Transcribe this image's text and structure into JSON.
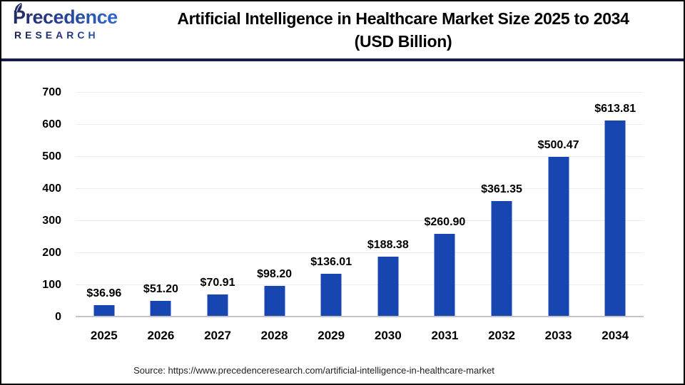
{
  "header": {
    "logo": {
      "line1": "Precedence",
      "line2": "RESEARCH"
    },
    "title_line1": "Artificial Intelligence in Healthcare Market Size 2025 to 2034",
    "title_line2": "(USD Billion)"
  },
  "chart_data": {
    "type": "bar",
    "title": "Artificial Intelligence in Healthcare Market Size 2025 to 2034 (USD Billion)",
    "categories": [
      "2025",
      "2026",
      "2027",
      "2028",
      "2029",
      "2030",
      "2031",
      "2032",
      "2033",
      "2034"
    ],
    "values": [
      36.96,
      51.2,
      70.91,
      98.2,
      136.01,
      188.38,
      260.9,
      361.35,
      500.47,
      613.81
    ],
    "value_labels": [
      "$36.96",
      "$51.20",
      "$70.91",
      "$98.20",
      "$136.01",
      "$188.38",
      "$260.90",
      "$361.35",
      "$500.47",
      "$613.81"
    ],
    "xlabel": "",
    "ylabel": "",
    "ylim": [
      0,
      700
    ],
    "yticks": [
      0,
      100,
      200,
      300,
      400,
      500,
      600,
      700
    ],
    "grid": true,
    "legend": "none",
    "bar_color": "#1846b0"
  },
  "colors": {
    "bar": "#1846b0",
    "header_divider": "#14204a",
    "gridline": "#ececec",
    "axis_line": "#c4c4c4",
    "logo_navy": "#232a63",
    "logo_blue": "#2f6fd8",
    "frame_border": "#000000"
  },
  "footer": {
    "source": "Source: https://www.precedenceresearch.com/artificial-intelligence-in-healthcare-market"
  }
}
